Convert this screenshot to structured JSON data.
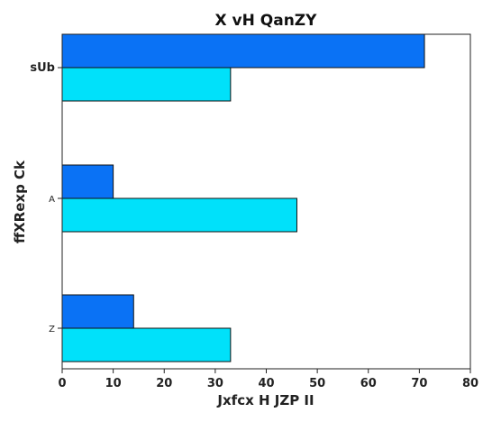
{
  "chart_data": {
    "type": "bar",
    "orientation": "horizontal",
    "title": "X  vH QanZY",
    "xlabel": "Jxfcx H JZP II",
    "ylabel": "ffXRexp   Ck",
    "categories": [
      "sUb",
      "A",
      "Z"
    ],
    "xlim": [
      0,
      80
    ],
    "xticks": [
      "0",
      "10",
      "20",
      "30",
      "40",
      "50",
      "60",
      "70",
      "80"
    ],
    "grid": false,
    "legend": "none",
    "series": [
      {
        "color": "#0a72f5",
        "values": [
          71,
          10,
          14
        ]
      },
      {
        "color": "#00e1fa",
        "values": [
          33,
          46,
          33
        ]
      }
    ]
  }
}
